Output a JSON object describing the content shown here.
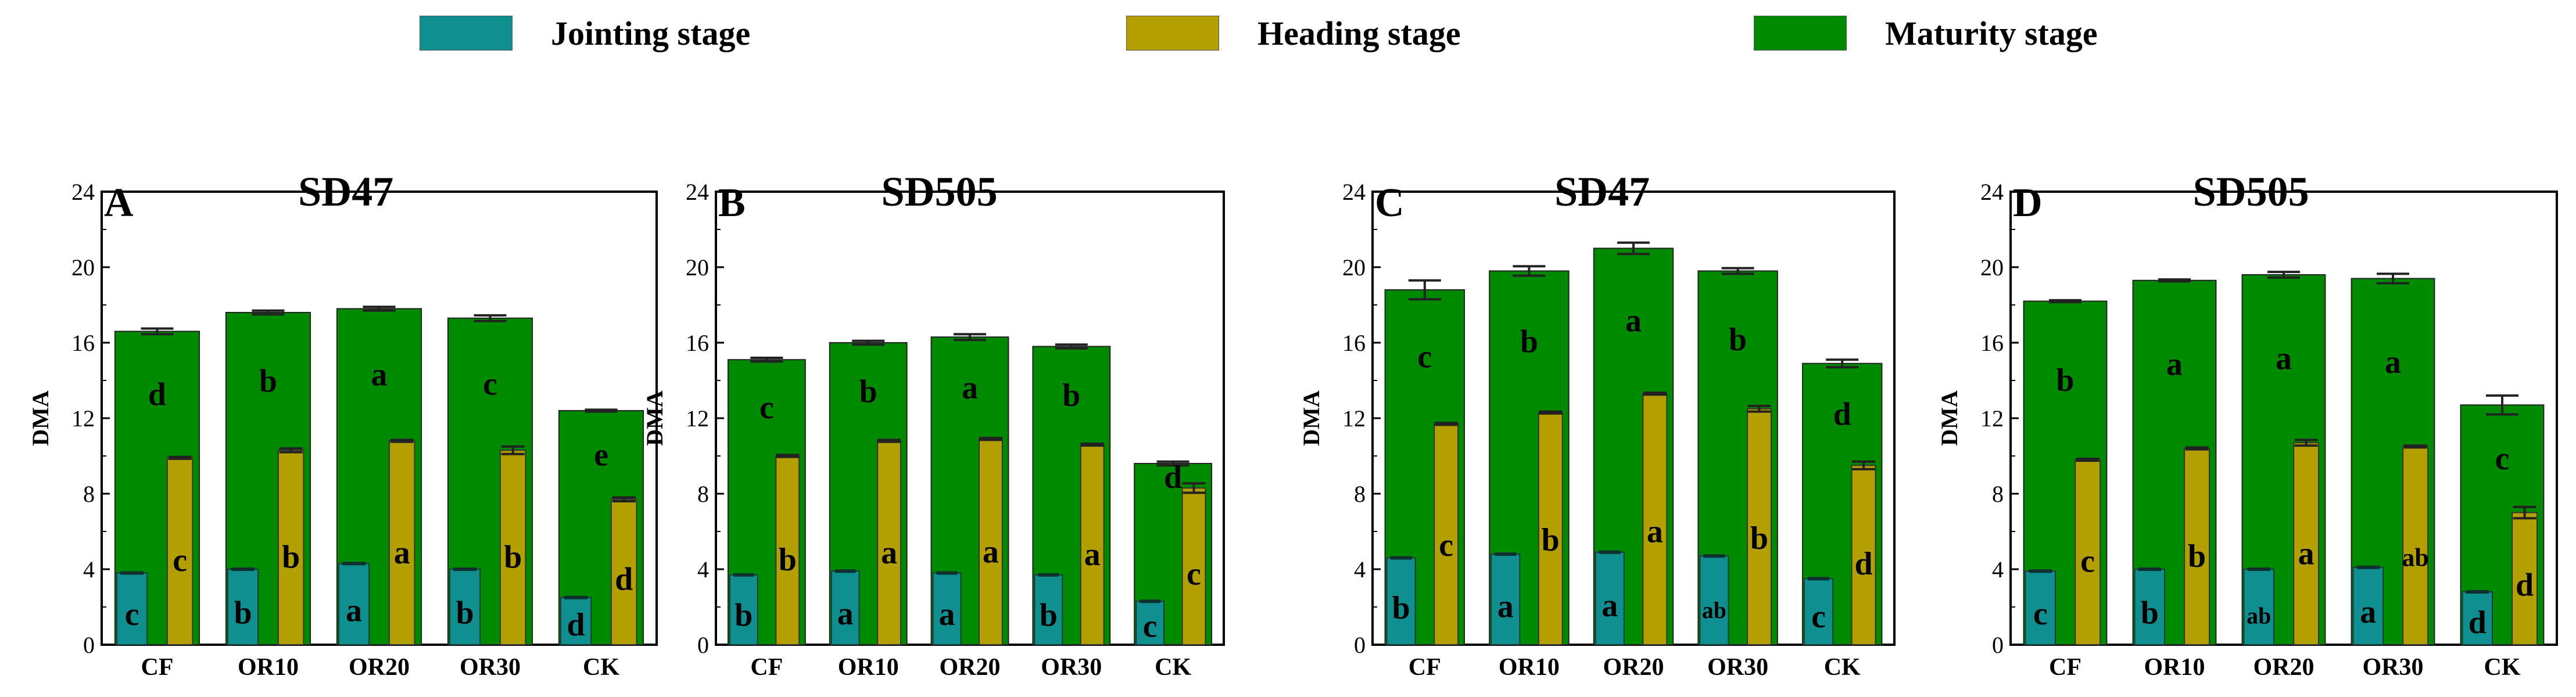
{
  "legend": [
    {
      "label": "Jointing stage",
      "color": "#0f8f8f"
    },
    {
      "label": "Heading stage",
      "color": "#b3a000"
    },
    {
      "label": "Maturity stage",
      "color": "#008a00"
    }
  ],
  "colors": {
    "jointing": "#0f8f8f",
    "heading": "#b3a000",
    "maturity": "#008a00"
  },
  "chart_data": [
    {
      "type": "bar",
      "panel_label": "A",
      "title": "SD47",
      "ylabel": "DMA",
      "xlabel": "",
      "ylim": [
        0,
        24
      ],
      "yticks": [
        "0",
        "4",
        "8",
        "12",
        "16",
        "20",
        "24"
      ],
      "categories": [
        "CF",
        "OR10",
        "OR20",
        "OR30",
        "CK"
      ],
      "series": [
        {
          "name": "Maturity stage",
          "values": [
            16.6,
            17.6,
            17.8,
            17.3,
            12.4
          ],
          "errors": [
            0.15,
            0.1,
            0.1,
            0.15,
            0.05
          ],
          "labels": [
            "d",
            "b",
            "a",
            "c",
            "e"
          ]
        },
        {
          "name": "Jointing stage",
          "values": [
            3.8,
            4.0,
            4.3,
            4.0,
            2.5
          ],
          "errors": [
            0,
            0,
            0,
            0,
            0
          ],
          "labels": [
            "c",
            "b",
            "a",
            "b",
            "d"
          ]
        },
        {
          "name": "Heading stage",
          "values": [
            9.9,
            10.3,
            10.8,
            10.3,
            7.7
          ],
          "errors": [
            0.05,
            0.1,
            0.05,
            0.2,
            0.1
          ],
          "labels": [
            "c",
            "b",
            "a",
            "b",
            "d"
          ]
        }
      ]
    },
    {
      "type": "bar",
      "panel_label": "B",
      "title": "SD505",
      "ylabel": "DMA",
      "xlabel": "",
      "ylim": [
        0,
        24
      ],
      "yticks": [
        "0",
        "4",
        "8",
        "12",
        "16",
        "20",
        "24"
      ],
      "categories": [
        "CF",
        "OR10",
        "OR20",
        "OR30",
        "CK"
      ],
      "series": [
        {
          "name": "Maturity stage",
          "values": [
            15.1,
            16.0,
            16.3,
            15.8,
            9.6
          ],
          "errors": [
            0.1,
            0.1,
            0.15,
            0.1,
            0.1
          ],
          "labels": [
            "c",
            "b",
            "a",
            "b",
            "d"
          ]
        },
        {
          "name": "Jointing stage",
          "values": [
            3.7,
            3.9,
            3.8,
            3.7,
            2.3
          ],
          "errors": [
            0,
            0,
            0,
            0,
            0
          ],
          "labels": [
            "b",
            "a",
            "a",
            "b",
            "c"
          ]
        },
        {
          "name": "Heading stage",
          "values": [
            10.0,
            10.8,
            10.9,
            10.6,
            8.3
          ],
          "errors": [
            0.05,
            0.05,
            0.05,
            0.05,
            0.25
          ],
          "labels": [
            "b",
            "a",
            "a",
            "a",
            "c"
          ]
        }
      ]
    },
    {
      "type": "bar",
      "panel_label": "C",
      "title": "SD47",
      "ylabel": "DMA",
      "xlabel": "",
      "ylim": [
        0,
        24
      ],
      "yticks": [
        "0",
        "4",
        "8",
        "12",
        "16",
        "20",
        "24"
      ],
      "categories": [
        "CF",
        "OR10",
        "OR20",
        "OR30",
        "CK"
      ],
      "series": [
        {
          "name": "Maturity stage",
          "values": [
            18.8,
            19.8,
            21.0,
            19.8,
            14.9
          ],
          "errors": [
            0.5,
            0.25,
            0.3,
            0.15,
            0.2
          ],
          "labels": [
            "c",
            "b",
            "a",
            "b",
            "d"
          ]
        },
        {
          "name": "Jointing stage",
          "values": [
            4.6,
            4.8,
            4.9,
            4.7,
            3.5
          ],
          "errors": [
            0,
            0,
            0,
            0,
            0
          ],
          "labels": [
            "b",
            "a",
            "a",
            "ab",
            "c"
          ]
        },
        {
          "name": "Heading stage",
          "values": [
            11.7,
            12.3,
            13.3,
            12.5,
            9.5
          ],
          "errors": [
            0.05,
            0.05,
            0.05,
            0.15,
            0.2
          ],
          "labels": [
            "c",
            "b",
            "a",
            "b",
            "d"
          ]
        }
      ]
    },
    {
      "type": "bar",
      "panel_label": "D",
      "title": "SD505",
      "ylabel": "DMA",
      "xlabel": "",
      "ylim": [
        0,
        24
      ],
      "yticks": [
        "0",
        "4",
        "8",
        "12",
        "16",
        "20",
        "24"
      ],
      "categories": [
        "CF",
        "OR10",
        "OR20",
        "OR30",
        "CK"
      ],
      "series": [
        {
          "name": "Maturity stage",
          "values": [
            18.2,
            19.3,
            19.6,
            19.4,
            12.7
          ],
          "errors": [
            0.05,
            0.05,
            0.15,
            0.25,
            0.5
          ],
          "labels": [
            "b",
            "a",
            "a",
            "a",
            "c"
          ]
        },
        {
          "name": "Jointing stage",
          "values": [
            3.9,
            4.0,
            4.0,
            4.1,
            2.8
          ],
          "errors": [
            0,
            0,
            0,
            0,
            0
          ],
          "labels": [
            "c",
            "b",
            "ab",
            "a",
            "d"
          ]
        },
        {
          "name": "Heading stage",
          "values": [
            9.8,
            10.4,
            10.7,
            10.5,
            7.0
          ],
          "errors": [
            0.05,
            0.05,
            0.15,
            0.05,
            0.3
          ],
          "labels": [
            "c",
            "b",
            "a",
            "ab",
            "d"
          ]
        }
      ]
    }
  ]
}
